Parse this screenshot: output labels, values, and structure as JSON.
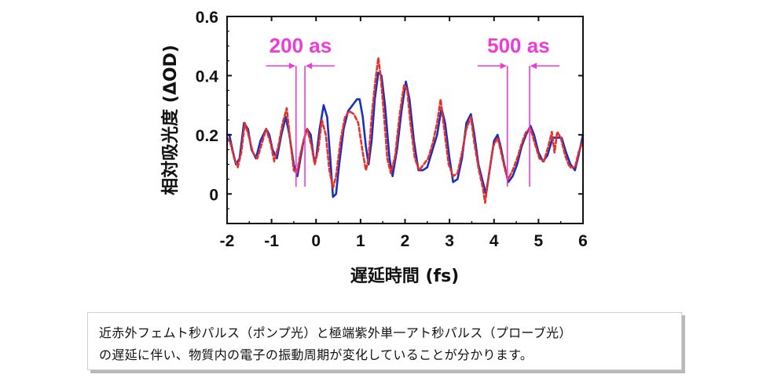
{
  "chart_data": {
    "type": "line",
    "xlabel": "遅延時間 (fs)",
    "ylabel": "相対吸光度 (ΔOD)",
    "xlim": [
      -2,
      6
    ],
    "ylim": [
      -0.1,
      0.6
    ],
    "xticks": [
      "-2",
      "-1",
      "0",
      "1",
      "2",
      "3",
      "4",
      "5",
      "6"
    ],
    "yticks": [
      "0",
      "0.2",
      "0.4",
      "0.6"
    ],
    "grid": false,
    "series": [
      {
        "style": "solid",
        "color": "#1a2fbf",
        "points": [
          [
            -2.0,
            0.2
          ],
          [
            -1.95,
            0.2
          ],
          [
            -1.88,
            0.15
          ],
          [
            -1.8,
            0.1
          ],
          [
            -1.72,
            0.12
          ],
          [
            -1.62,
            0.24
          ],
          [
            -1.53,
            0.22
          ],
          [
            -1.45,
            0.15
          ],
          [
            -1.35,
            0.12
          ],
          [
            -1.25,
            0.18
          ],
          [
            -1.12,
            0.22
          ],
          [
            -1.05,
            0.2
          ],
          [
            -0.98,
            0.15
          ],
          [
            -0.88,
            0.12
          ],
          [
            -0.78,
            0.2
          ],
          [
            -0.68,
            0.26
          ],
          [
            -0.6,
            0.2
          ],
          [
            -0.5,
            0.1
          ],
          [
            -0.42,
            0.06
          ],
          [
            -0.35,
            0.12
          ],
          [
            -0.28,
            0.18
          ],
          [
            -0.2,
            0.22
          ],
          [
            -0.12,
            0.2
          ],
          [
            -0.05,
            0.12
          ],
          [
            0.0,
            0.12
          ],
          [
            0.08,
            0.22
          ],
          [
            0.17,
            0.3
          ],
          [
            0.25,
            0.26
          ],
          [
            0.33,
            0.1
          ],
          [
            0.38,
            -0.01
          ],
          [
            0.45,
            0.0
          ],
          [
            0.52,
            0.1
          ],
          [
            0.62,
            0.22
          ],
          [
            0.72,
            0.28
          ],
          [
            0.82,
            0.3
          ],
          [
            0.92,
            0.32
          ],
          [
            0.98,
            0.32
          ],
          [
            1.05,
            0.26
          ],
          [
            1.12,
            0.16
          ],
          [
            1.18,
            0.1
          ],
          [
            1.25,
            0.18
          ],
          [
            1.32,
            0.32
          ],
          [
            1.4,
            0.41
          ],
          [
            1.47,
            0.4
          ],
          [
            1.55,
            0.3
          ],
          [
            1.65,
            0.12
          ],
          [
            1.72,
            0.06
          ],
          [
            1.82,
            0.15
          ],
          [
            1.92,
            0.28
          ],
          [
            2.02,
            0.38
          ],
          [
            2.1,
            0.32
          ],
          [
            2.2,
            0.18
          ],
          [
            2.3,
            0.08
          ],
          [
            2.4,
            0.08
          ],
          [
            2.5,
            0.09
          ],
          [
            2.62,
            0.15
          ],
          [
            2.72,
            0.2
          ],
          [
            2.82,
            0.29
          ],
          [
            2.9,
            0.24
          ],
          [
            3.0,
            0.12
          ],
          [
            3.08,
            0.04
          ],
          [
            3.18,
            0.05
          ],
          [
            3.28,
            0.12
          ],
          [
            3.38,
            0.24
          ],
          [
            3.48,
            0.27
          ],
          [
            3.56,
            0.2
          ],
          [
            3.65,
            0.1
          ],
          [
            3.75,
            0.04
          ],
          [
            3.82,
            0.0
          ],
          [
            3.9,
            0.08
          ],
          [
            4.0,
            0.18
          ],
          [
            4.08,
            0.2
          ],
          [
            4.15,
            0.16
          ],
          [
            4.23,
            0.1
          ],
          [
            4.32,
            0.04
          ],
          [
            4.42,
            0.06
          ],
          [
            4.52,
            0.1
          ],
          [
            4.62,
            0.16
          ],
          [
            4.72,
            0.2
          ],
          [
            4.82,
            0.23
          ],
          [
            4.9,
            0.2
          ],
          [
            5.0,
            0.14
          ],
          [
            5.1,
            0.11
          ],
          [
            5.2,
            0.13
          ],
          [
            5.32,
            0.19
          ],
          [
            5.42,
            0.19
          ],
          [
            5.52,
            0.19
          ],
          [
            5.62,
            0.14
          ],
          [
            5.72,
            0.1
          ],
          [
            5.82,
            0.08
          ],
          [
            5.9,
            0.13
          ],
          [
            6.0,
            0.2
          ]
        ]
      },
      {
        "style": "dashed",
        "color": "#e8302a",
        "points": [
          [
            -2.0,
            0.19
          ],
          [
            -1.92,
            0.17
          ],
          [
            -1.84,
            0.12
          ],
          [
            -1.76,
            0.09
          ],
          [
            -1.68,
            0.14
          ],
          [
            -1.6,
            0.24
          ],
          [
            -1.52,
            0.2
          ],
          [
            -1.42,
            0.14
          ],
          [
            -1.32,
            0.12
          ],
          [
            -1.22,
            0.17
          ],
          [
            -1.12,
            0.22
          ],
          [
            -1.02,
            0.17
          ],
          [
            -0.94,
            0.11
          ],
          [
            -0.85,
            0.16
          ],
          [
            -0.75,
            0.24
          ],
          [
            -0.66,
            0.29
          ],
          [
            -0.58,
            0.18
          ],
          [
            -0.5,
            0.08
          ],
          [
            -0.43,
            0.07
          ],
          [
            -0.36,
            0.13
          ],
          [
            -0.28,
            0.18
          ],
          [
            -0.2,
            0.22
          ],
          [
            -0.1,
            0.16
          ],
          [
            -0.03,
            0.1
          ],
          [
            0.05,
            0.15
          ],
          [
            0.13,
            0.25
          ],
          [
            0.22,
            0.2
          ],
          [
            0.3,
            0.08
          ],
          [
            0.38,
            0.02
          ],
          [
            0.45,
            0.06
          ],
          [
            0.55,
            0.18
          ],
          [
            0.65,
            0.26
          ],
          [
            0.75,
            0.28
          ],
          [
            0.85,
            0.27
          ],
          [
            0.95,
            0.24
          ],
          [
            1.05,
            0.14
          ],
          [
            1.12,
            0.08
          ],
          [
            1.18,
            0.12
          ],
          [
            1.25,
            0.26
          ],
          [
            1.33,
            0.38
          ],
          [
            1.4,
            0.46
          ],
          [
            1.45,
            0.4
          ],
          [
            1.52,
            0.28
          ],
          [
            1.6,
            0.12
          ],
          [
            1.68,
            0.07
          ],
          [
            1.78,
            0.13
          ],
          [
            1.88,
            0.27
          ],
          [
            1.98,
            0.37
          ],
          [
            2.05,
            0.35
          ],
          [
            2.12,
            0.24
          ],
          [
            2.22,
            0.12
          ],
          [
            2.32,
            0.08
          ],
          [
            2.42,
            0.1
          ],
          [
            2.52,
            0.12
          ],
          [
            2.62,
            0.17
          ],
          [
            2.72,
            0.24
          ],
          [
            2.8,
            0.32
          ],
          [
            2.88,
            0.22
          ],
          [
            2.98,
            0.1
          ],
          [
            3.08,
            0.06
          ],
          [
            3.18,
            0.07
          ],
          [
            3.28,
            0.14
          ],
          [
            3.38,
            0.22
          ],
          [
            3.48,
            0.26
          ],
          [
            3.56,
            0.17
          ],
          [
            3.66,
            0.08
          ],
          [
            3.75,
            0.02
          ],
          [
            3.8,
            -0.03
          ],
          [
            3.88,
            0.06
          ],
          [
            3.98,
            0.16
          ],
          [
            4.08,
            0.19
          ],
          [
            4.16,
            0.14
          ],
          [
            4.25,
            0.08
          ],
          [
            4.32,
            0.05
          ],
          [
            4.42,
            0.08
          ],
          [
            4.52,
            0.12
          ],
          [
            4.62,
            0.17
          ],
          [
            4.72,
            0.21
          ],
          [
            4.82,
            0.22
          ],
          [
            4.92,
            0.17
          ],
          [
            5.02,
            0.12
          ],
          [
            5.12,
            0.11
          ],
          [
            5.22,
            0.16
          ],
          [
            5.3,
            0.21
          ],
          [
            5.36,
            0.14
          ],
          [
            5.42,
            0.21
          ],
          [
            5.5,
            0.19
          ],
          [
            5.6,
            0.13
          ],
          [
            5.7,
            0.09
          ],
          [
            5.82,
            0.09
          ],
          [
            5.9,
            0.14
          ],
          [
            6.0,
            0.18
          ]
        ]
      }
    ],
    "annotations": [
      {
        "label": "200 as",
        "from_x": -0.45,
        "to_x": -0.25
      },
      {
        "label": "500 as",
        "from_x": 4.3,
        "to_x": 4.8
      }
    ]
  },
  "caption": {
    "line1": "近赤外フェムト秒パルス（ポンプ光）と極端紫外単一アト秒パルス（プローブ光）",
    "line2": "の遅延に伴い、物質内の電子の振動周期が変化していることが分かります。"
  },
  "colors": {
    "solid_line": "#1a2fbf",
    "dashed_line": "#e8302a",
    "annotation": "#ee3bd8"
  }
}
